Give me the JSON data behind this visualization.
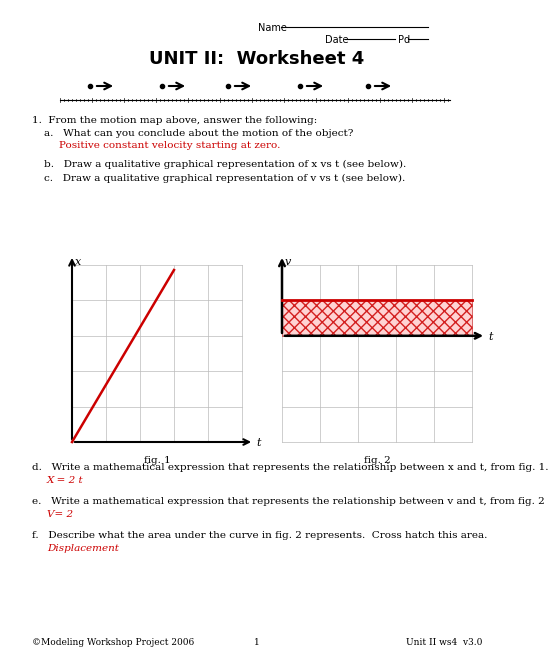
{
  "title": "UNIT II:  Worksheet 4",
  "qa_answer": "Positive constant velocity starting at zero.",
  "qb": "b.   Draw a qualitative graphical representation of x vs t (see below).",
  "qc": "c.   Draw a qualitative graphical representation of v vs t (see below).",
  "qd": "d.   Write a mathematical expression that represents the relationship between x and t, from fig. 1.",
  "qd_answer": "X = 2 t",
  "qe": "e.   Write a mathematical expression that represents the relationship between v and t, from fig. 2",
  "qe_answer": "V= 2",
  "qf": "f.   Describe what the area under the curve in fig. 2 represents.  Cross hatch this area.",
  "qf_answer": "Displacement",
  "footer_left": "©Modeling Workshop Project 2006",
  "footer_center": "1",
  "footer_right": "Unit II ws4  v3.0",
  "red_color": "#cc0000",
  "grid_color": "#bbbbbb",
  "hatch_facecolor": "#ffcccc"
}
